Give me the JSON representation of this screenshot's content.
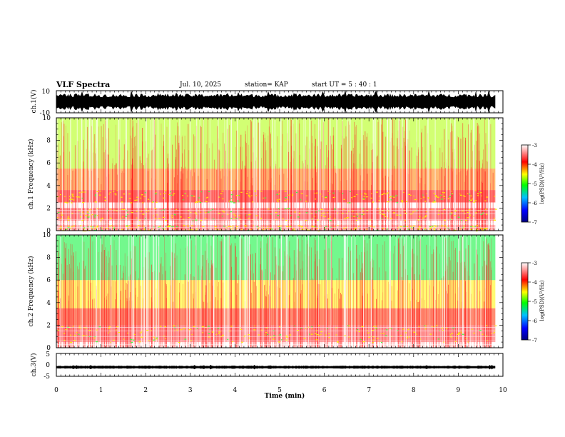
{
  "header": {
    "title": "VLF Spectra",
    "date": "Jul. 10, 2025",
    "station": "station= KAP",
    "start": "start UT =  5 : 40 : 1"
  },
  "chart_data": [
    {
      "type": "line",
      "name": "ch1-waveform",
      "ylabel": "ch.1(V)",
      "ylim": [
        -10,
        10
      ],
      "yticks": [
        "10",
        "-10"
      ],
      "xlim": [
        0,
        10
      ],
      "x_end": 9.83,
      "envelope": "dense, saturated near ±10 V across the record"
    },
    {
      "type": "heatmap",
      "name": "ch1-spectrogram",
      "ylabel": "ch.1\nFrequency (kHz)",
      "ylim": [
        0,
        10
      ],
      "yticks": [
        "0",
        "2",
        "4",
        "6",
        "8",
        "10"
      ],
      "xlim": [
        0,
        10
      ],
      "x_end": 9.83,
      "colorbar": {
        "label": "log(PSD)(V²/Hz)",
        "range": [
          -7,
          -3
        ],
        "ticks": [
          "-3",
          "-4",
          "-5",
          "-6",
          "-7"
        ],
        "colors": [
          "#000080",
          "#0000ff",
          "#00c0ff",
          "#00ff00",
          "#ffff00",
          "#ff0000",
          "#ffffff"
        ]
      },
      "bands_khz": [
        {
          "from": 0.0,
          "to": 0.5,
          "level": -3.4
        },
        {
          "from": 0.9,
          "to": 2.0,
          "level": -3.7
        },
        {
          "from": 2.5,
          "to": 3.6,
          "level": -3.9
        },
        {
          "from": 3.6,
          "to": 5.5,
          "level": -4.2
        },
        {
          "from": 5.5,
          "to": 10.0,
          "level": -4.7
        }
      ]
    },
    {
      "type": "heatmap",
      "name": "ch2-spectrogram",
      "ylabel": "ch.2\nFrequency (kHz)",
      "ylim": [
        0,
        10
      ],
      "yticks": [
        "0",
        "2",
        "4",
        "6",
        "8",
        "10"
      ],
      "xlim": [
        0,
        10
      ],
      "x_end": 9.83,
      "colorbar": {
        "label": "log(PSD)(V²/Hz)",
        "range": [
          -7,
          -3
        ],
        "ticks": [
          "-3",
          "-4",
          "-5",
          "-6",
          "-7"
        ],
        "colors": [
          "#000080",
          "#0000ff",
          "#00c0ff",
          "#00ff00",
          "#ffff00",
          "#ff0000",
          "#ffffff"
        ]
      },
      "bands_khz": [
        {
          "from": 0.5,
          "to": 2.0,
          "level": -3.6
        },
        {
          "from": 2.0,
          "to": 3.5,
          "level": -4.0
        },
        {
          "from": 3.5,
          "to": 6.0,
          "level": -4.5
        },
        {
          "from": 6.0,
          "to": 10.0,
          "level": -5.2
        }
      ]
    },
    {
      "type": "line",
      "name": "ch3-waveform",
      "ylabel": "ch.3(V)",
      "ylim": [
        -5,
        5
      ],
      "yticks": [
        "5",
        "0",
        "-5"
      ],
      "xlim": [
        0,
        10
      ],
      "x_end": 9.83,
      "envelope": "narrow band around -1 V"
    }
  ],
  "xaxis": {
    "label": "Time (min)",
    "ticks": [
      "0",
      "1",
      "2",
      "3",
      "4",
      "5",
      "6",
      "7",
      "8",
      "9",
      "10"
    ]
  }
}
